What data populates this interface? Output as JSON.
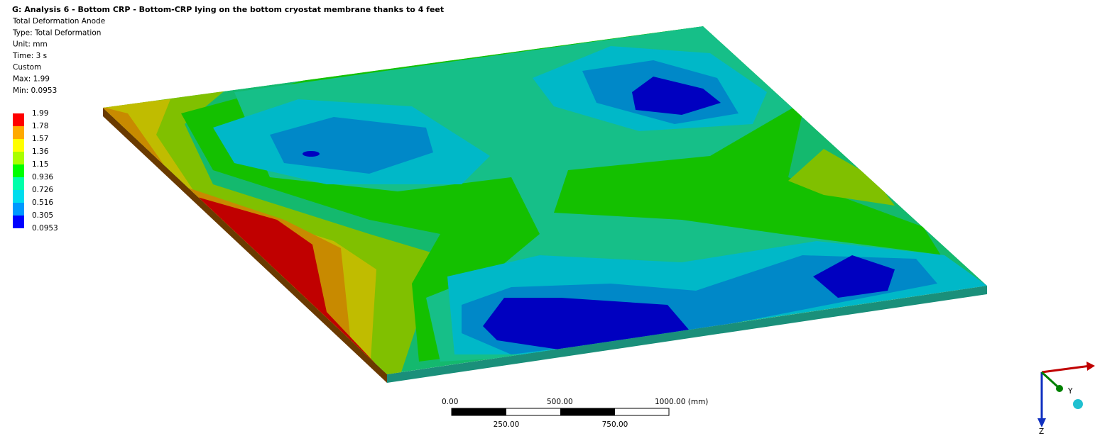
{
  "header": {
    "title": "G: Analysis 6 - Bottom CRP - Bottom-CRP lying on the bottom cryostat membrane thanks to 4 feet",
    "lines": [
      "Total Deformation Anode",
      "Type: Total Deformation",
      "Unit: mm",
      "Time: 3 s",
      "Custom",
      "Max: 1.99",
      "Min: 0.0953"
    ]
  },
  "legend": {
    "labels": [
      "1.99",
      "1.78",
      "1.57",
      "1.36",
      "1.15",
      "0.936",
      "0.726",
      "0.516",
      "0.305",
      "0.0953"
    ],
    "colors": [
      "#ff0000",
      "#ffaa00",
      "#ffff00",
      "#aaff00",
      "#00ff00",
      "#00ffaa",
      "#00ddee",
      "#0099ff",
      "#0000ff"
    ]
  },
  "scale_bar": {
    "top_labels": [
      "0.00",
      "500.00",
      "1000.00 (mm)"
    ],
    "bottom_labels": [
      "250.00",
      "750.00"
    ]
  },
  "triad": {
    "y_label": "Y",
    "z_label": "Z"
  }
}
